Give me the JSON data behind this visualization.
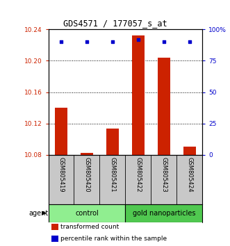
{
  "title": "GDS4571 / 177057_s_at",
  "samples": [
    "GSM805419",
    "GSM805420",
    "GSM805421",
    "GSM805422",
    "GSM805423",
    "GSM805424"
  ],
  "red_values": [
    10.14,
    10.082,
    10.113,
    10.232,
    10.204,
    10.09
  ],
  "blue_values": [
    90,
    90,
    90,
    92,
    90,
    90
  ],
  "ylim_left": [
    10.08,
    10.24
  ],
  "ylim_right": [
    0,
    100
  ],
  "yticks_left": [
    10.08,
    10.12,
    10.16,
    10.2,
    10.24
  ],
  "ytick_labels_left": [
    "10.08",
    "10.12",
    "10.16",
    "10.20",
    "10.24"
  ],
  "yticks_right": [
    0,
    25,
    50,
    75,
    100
  ],
  "ytick_labels_right": [
    "0",
    "25",
    "50",
    "75",
    "100%"
  ],
  "groups": [
    {
      "label": "control",
      "samples": [
        0,
        1,
        2
      ],
      "color": "#90EE90"
    },
    {
      "label": "gold nanoparticles",
      "samples": [
        3,
        4,
        5
      ],
      "color": "#50C850"
    }
  ],
  "agent_label": "agent",
  "bar_color": "#CC2200",
  "dot_color": "#0000CC",
  "legend_items": [
    {
      "color": "#CC2200",
      "label": "transformed count"
    },
    {
      "color": "#0000CC",
      "label": "percentile rank within the sample"
    }
  ],
  "bar_width": 0.5,
  "background_color": "#ffffff",
  "plot_bg": "#ffffff",
  "sample_box_color": "#C8C8C8"
}
